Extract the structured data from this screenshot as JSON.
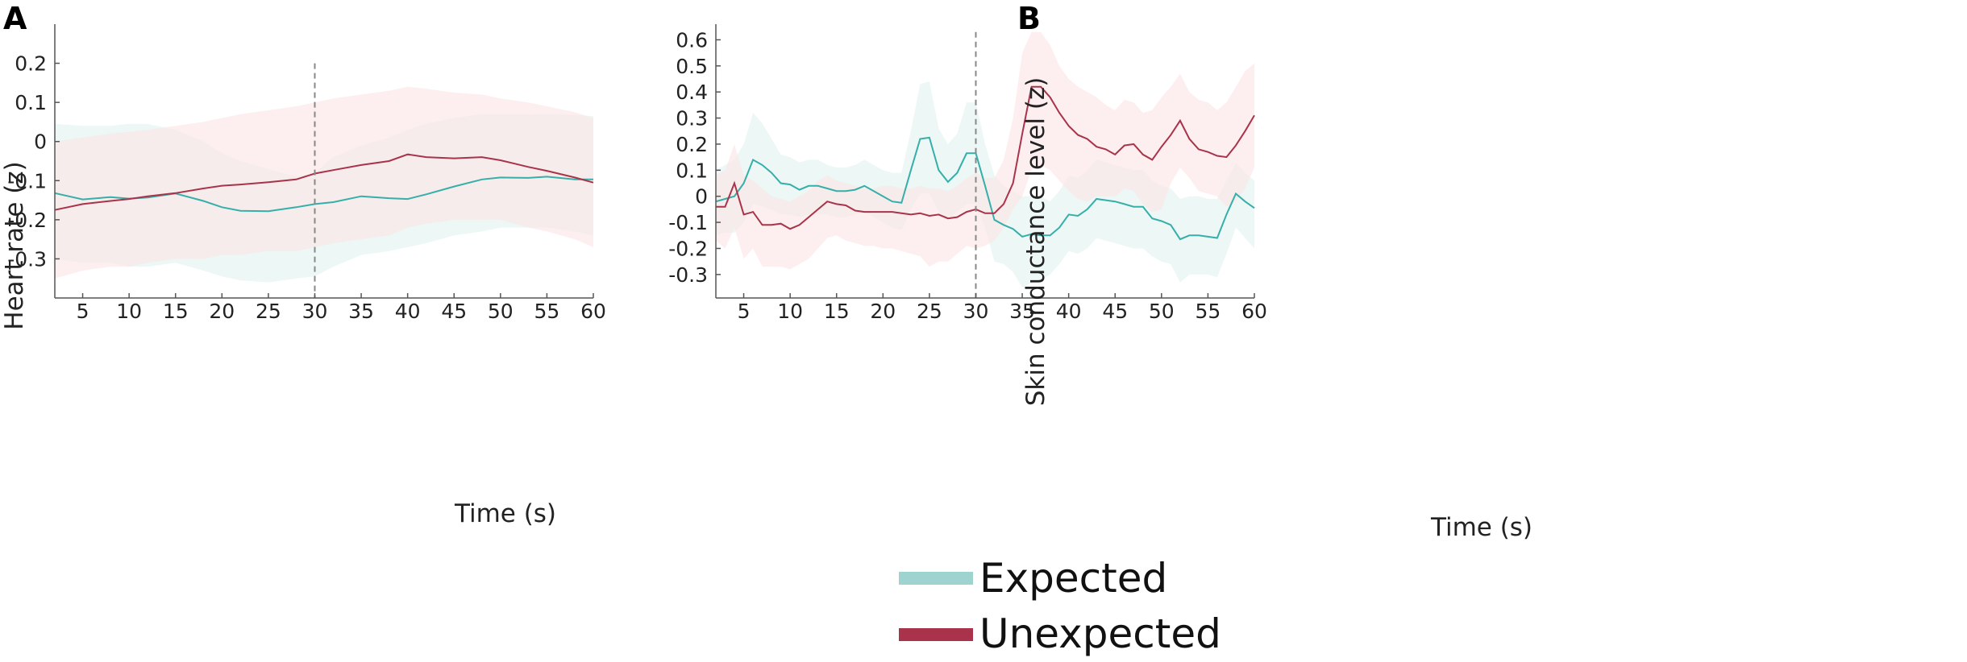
{
  "chart_data": [
    {
      "panel_label": "A",
      "type": "line",
      "xlabel": "Time (s)",
      "ylabel": "Heart rate (z)",
      "xlim": [
        2,
        60
      ],
      "ylim": [
        -0.4,
        0.3
      ],
      "xticks": [
        5,
        10,
        15,
        20,
        25,
        30,
        35,
        40,
        45,
        50,
        55,
        60
      ],
      "xtick_labels": [
        "5",
        "10",
        "15",
        "20",
        "25",
        "30",
        "35",
        "40",
        "45",
        "50",
        "55",
        "60"
      ],
      "yticks": [
        0.2,
        0.1,
        0,
        -0.1,
        -0.2,
        -0.3
      ],
      "ytick_labels": [
        "0.2",
        "0.1",
        "0",
        "-0.1",
        "-0.2",
        "-0.3"
      ],
      "vline": {
        "x": 30,
        "y_top": 0.2
      },
      "x": [
        2,
        5,
        8,
        10,
        12,
        15,
        18,
        20,
        22,
        25,
        28,
        30,
        32,
        35,
        38,
        40,
        42,
        45,
        48,
        50,
        53,
        55,
        58,
        60
      ],
      "series": [
        {
          "name": "Expected",
          "values": [
            -0.132,
            -0.148,
            -0.142,
            -0.146,
            -0.143,
            -0.133,
            -0.152,
            -0.168,
            -0.177,
            -0.178,
            -0.168,
            -0.16,
            -0.155,
            -0.14,
            -0.145,
            -0.147,
            -0.135,
            -0.115,
            -0.097,
            -0.092,
            -0.093,
            -0.09,
            -0.097,
            -0.097
          ],
          "upper": [
            0.045,
            0.04,
            0.04,
            0.045,
            0.045,
            0.03,
            0.0,
            -0.03,
            -0.05,
            -0.07,
            -0.09,
            -0.08,
            -0.04,
            -0.01,
            0.01,
            0.03,
            0.045,
            0.06,
            0.07,
            0.07,
            0.07,
            0.07,
            0.068,
            0.065
          ],
          "lower": [
            -0.3,
            -0.31,
            -0.31,
            -0.32,
            -0.32,
            -0.31,
            -0.33,
            -0.345,
            -0.355,
            -0.36,
            -0.35,
            -0.345,
            -0.32,
            -0.29,
            -0.28,
            -0.27,
            -0.26,
            -0.24,
            -0.23,
            -0.22,
            -0.22,
            -0.22,
            -0.23,
            -0.24
          ]
        },
        {
          "name": "Unexpected",
          "values": [
            -0.175,
            -0.16,
            -0.152,
            -0.147,
            -0.14,
            -0.132,
            -0.12,
            -0.113,
            -0.11,
            -0.104,
            -0.097,
            -0.082,
            -0.073,
            -0.06,
            -0.05,
            -0.033,
            -0.04,
            -0.043,
            -0.04,
            -0.048,
            -0.065,
            -0.075,
            -0.092,
            -0.105
          ],
          "upper": [
            0.0,
            0.01,
            0.02,
            0.025,
            0.03,
            0.04,
            0.05,
            0.06,
            0.07,
            0.08,
            0.09,
            0.1,
            0.11,
            0.12,
            0.13,
            0.14,
            0.135,
            0.125,
            0.12,
            0.11,
            0.1,
            0.09,
            0.075,
            0.06
          ],
          "lower": [
            -0.35,
            -0.33,
            -0.32,
            -0.32,
            -0.31,
            -0.3,
            -0.3,
            -0.29,
            -0.29,
            -0.28,
            -0.28,
            -0.27,
            -0.26,
            -0.25,
            -0.24,
            -0.22,
            -0.21,
            -0.2,
            -0.2,
            -0.2,
            -0.22,
            -0.23,
            -0.25,
            -0.27
          ]
        }
      ]
    },
    {
      "panel_label": "B",
      "type": "line",
      "xlabel": "Time (s)",
      "ylabel": "Skin conductance level (z)",
      "xlim": [
        2,
        60
      ],
      "ylim": [
        -0.39,
        0.66
      ],
      "xticks": [
        5,
        10,
        15,
        20,
        25,
        30,
        35,
        40,
        45,
        50,
        55,
        60
      ],
      "xtick_labels": [
        "5",
        "10",
        "15",
        "20",
        "25",
        "30",
        "35",
        "40",
        "45",
        "50",
        "55",
        "60"
      ],
      "yticks": [
        0.6,
        0.5,
        0.4,
        0.3,
        0.2,
        0.1,
        0,
        -0.1,
        -0.2,
        -0.3
      ],
      "ytick_labels": [
        "0.6",
        "0.5",
        "0.4",
        "0.3",
        "0.2",
        "0.1",
        "0",
        "-0.1",
        "-0.2",
        "-0.3"
      ],
      "vline": {
        "x": 30,
        "y_top": 0.63
      },
      "x": [
        2,
        3,
        4,
        5,
        6,
        7,
        8,
        9,
        10,
        11,
        12,
        13,
        14,
        15,
        16,
        17,
        18,
        19,
        20,
        21,
        22,
        23,
        24,
        25,
        26,
        27,
        28,
        29,
        30,
        31,
        32,
        33,
        34,
        35,
        36,
        37,
        38,
        39,
        40,
        41,
        42,
        43,
        44,
        45,
        46,
        47,
        48,
        49,
        50,
        51,
        52,
        53,
        54,
        55,
        56,
        57,
        58,
        59,
        60
      ],
      "series": [
        {
          "name": "Expected",
          "values": [
            -0.02,
            -0.01,
            0.0,
            0.05,
            0.14,
            0.12,
            0.09,
            0.05,
            0.045,
            0.025,
            0.04,
            0.04,
            0.03,
            0.02,
            0.02,
            0.025,
            0.04,
            0.02,
            0.0,
            -0.02,
            -0.025,
            0.1,
            0.22,
            0.225,
            0.1,
            0.055,
            0.09,
            0.165,
            0.165,
            0.04,
            -0.09,
            -0.11,
            -0.125,
            -0.155,
            -0.145,
            -0.15,
            -0.15,
            -0.12,
            -0.07,
            -0.075,
            -0.05,
            -0.01,
            -0.015,
            -0.02,
            -0.03,
            -0.04,
            -0.04,
            -0.085,
            -0.095,
            -0.11,
            -0.165,
            -0.15,
            -0.15,
            -0.155,
            -0.16,
            -0.07,
            0.01,
            -0.02,
            -0.045
          ],
          "upper": [
            0.1,
            0.12,
            0.14,
            0.2,
            0.32,
            0.28,
            0.22,
            0.16,
            0.15,
            0.13,
            0.14,
            0.14,
            0.12,
            0.11,
            0.11,
            0.12,
            0.14,
            0.12,
            0.1,
            0.09,
            0.09,
            0.25,
            0.43,
            0.44,
            0.26,
            0.2,
            0.24,
            0.36,
            0.36,
            0.2,
            0.08,
            0.04,
            0.02,
            0.0,
            0.0,
            0.0,
            -0.02,
            0.02,
            0.08,
            0.07,
            0.1,
            0.14,
            0.13,
            0.12,
            0.11,
            0.1,
            0.1,
            0.06,
            0.04,
            0.03,
            -0.01,
            0.0,
            0.0,
            -0.01,
            -0.01,
            0.06,
            0.13,
            0.09,
            0.06
          ],
          "lower": [
            -0.15,
            -0.14,
            -0.14,
            -0.1,
            -0.03,
            -0.04,
            -0.05,
            -0.07,
            -0.07,
            -0.08,
            -0.07,
            -0.07,
            -0.07,
            -0.08,
            -0.08,
            -0.07,
            -0.06,
            -0.08,
            -0.1,
            -0.12,
            -0.13,
            -0.05,
            0.01,
            0.01,
            -0.06,
            -0.09,
            -0.06,
            -0.03,
            -0.03,
            -0.12,
            -0.25,
            -0.26,
            -0.29,
            -0.35,
            -0.33,
            -0.32,
            -0.3,
            -0.26,
            -0.21,
            -0.22,
            -0.2,
            -0.16,
            -0.17,
            -0.18,
            -0.19,
            -0.2,
            -0.2,
            -0.23,
            -0.25,
            -0.26,
            -0.33,
            -0.3,
            -0.3,
            -0.3,
            -0.31,
            -0.22,
            -0.12,
            -0.16,
            -0.2
          ]
        },
        {
          "name": "Unexpected",
          "values": [
            -0.04,
            -0.04,
            0.05,
            -0.07,
            -0.06,
            -0.11,
            -0.11,
            -0.105,
            -0.125,
            -0.11,
            -0.08,
            -0.05,
            -0.02,
            -0.03,
            -0.035,
            -0.055,
            -0.06,
            -0.06,
            -0.06,
            -0.06,
            -0.065,
            -0.07,
            -0.065,
            -0.075,
            -0.07,
            -0.085,
            -0.08,
            -0.06,
            -0.05,
            -0.065,
            -0.065,
            -0.03,
            0.05,
            0.24,
            0.42,
            0.42,
            0.38,
            0.32,
            0.27,
            0.235,
            0.22,
            0.19,
            0.18,
            0.16,
            0.195,
            0.2,
            0.16,
            0.14,
            0.19,
            0.235,
            0.29,
            0.22,
            0.18,
            0.17,
            0.155,
            0.15,
            0.195,
            0.25,
            0.31
          ],
          "upper": [
            0.08,
            0.1,
            0.2,
            0.08,
            0.06,
            0.03,
            0.0,
            -0.01,
            -0.02,
            0.0,
            0.02,
            0.06,
            0.08,
            0.06,
            0.05,
            0.04,
            0.03,
            0.03,
            0.04,
            0.04,
            0.03,
            0.03,
            0.04,
            0.03,
            0.03,
            0.02,
            0.04,
            0.07,
            0.09,
            0.07,
            0.07,
            0.14,
            0.3,
            0.55,
            0.63,
            0.63,
            0.58,
            0.5,
            0.45,
            0.42,
            0.4,
            0.38,
            0.35,
            0.33,
            0.37,
            0.36,
            0.32,
            0.33,
            0.38,
            0.42,
            0.47,
            0.4,
            0.37,
            0.36,
            0.33,
            0.36,
            0.42,
            0.48,
            0.51
          ],
          "lower": [
            -0.17,
            -0.2,
            -0.12,
            -0.24,
            -0.2,
            -0.27,
            -0.27,
            -0.27,
            -0.28,
            -0.26,
            -0.24,
            -0.2,
            -0.16,
            -0.15,
            -0.17,
            -0.18,
            -0.19,
            -0.19,
            -0.2,
            -0.2,
            -0.21,
            -0.22,
            -0.23,
            -0.27,
            -0.25,
            -0.25,
            -0.22,
            -0.19,
            -0.2,
            -0.19,
            -0.17,
            -0.12,
            -0.05,
            0.0,
            0.1,
            0.12,
            0.1,
            0.06,
            0.02,
            -0.01,
            -0.02,
            0.0,
            0.0,
            0.0,
            0.03,
            0.02,
            -0.03,
            -0.06,
            -0.05,
            0.05,
            0.11,
            0.07,
            0.02,
            0.01,
            0.0,
            -0.04,
            -0.02,
            0.03,
            0.11
          ]
        }
      ]
    }
  ],
  "legend": [
    {
      "label": "Expected",
      "color": "#9ED3D0"
    },
    {
      "label": "Unexpected",
      "color": "#A8334A"
    }
  ],
  "colors": {
    "expected_line": "#36AFA8",
    "expected_band": "#E1F2F1",
    "unexpected_line": "#A8334A",
    "unexpected_band": "#FCE5E5",
    "axis": "#555555",
    "vline": "#888888"
  }
}
